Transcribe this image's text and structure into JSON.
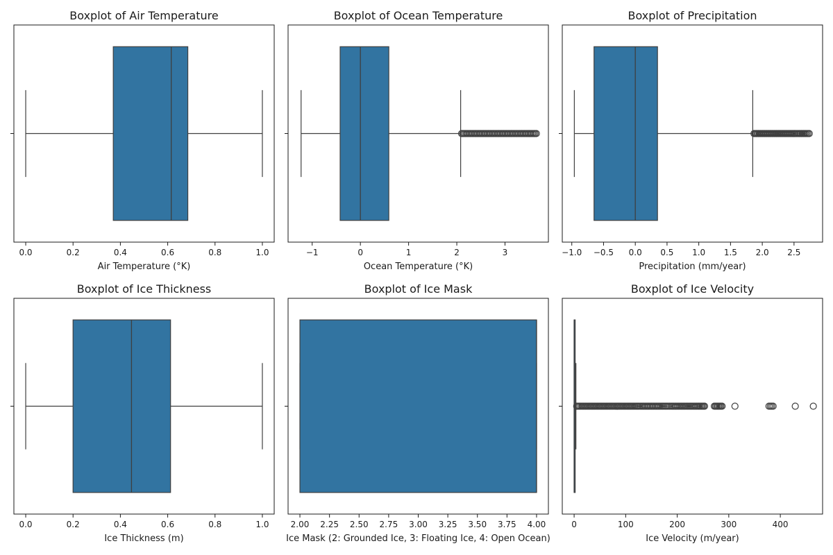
{
  "chart_data": [
    {
      "type": "boxplot",
      "title": "Boxplot of Air Temperature",
      "xlabel": "Air Temperature (°K)",
      "xlim": [
        -0.05,
        1.05
      ],
      "xticks": [
        0.0,
        0.2,
        0.4,
        0.6,
        0.8,
        1.0
      ],
      "xtick_labels": [
        "0.0",
        "0.2",
        "0.4",
        "0.6",
        "0.8",
        "1.0"
      ],
      "whisker_low": 0.0,
      "q1": 0.37,
      "median": 0.615,
      "q3": 0.685,
      "whisker_high": 1.0,
      "outliers": []
    },
    {
      "type": "boxplot",
      "title": "Boxplot of Ocean Temperature",
      "xlabel": "Ocean Temperature (°K)",
      "xlim": [
        -1.5,
        3.9
      ],
      "xticks": [
        -1,
        0,
        1,
        2,
        3
      ],
      "xtick_labels": [
        "−1",
        "0",
        "1",
        "2",
        "3"
      ],
      "whisker_low": -1.23,
      "q1": -0.42,
      "median": 0.0,
      "q3": 0.59,
      "whisker_high": 2.08,
      "outliers": [
        2.1,
        2.2,
        2.3,
        2.4,
        2.5,
        2.6,
        2.7,
        2.8,
        2.9,
        3.0,
        3.1,
        3.2,
        3.3,
        3.4,
        3.5,
        3.6,
        3.65
      ]
    },
    {
      "type": "boxplot",
      "title": "Boxplot of Precipitation",
      "xlabel": "Precipitation (mm/year)",
      "xlim": [
        -1.15,
        2.95
      ],
      "xticks": [
        -1.0,
        -0.5,
        0.0,
        0.5,
        1.0,
        1.5,
        2.0,
        2.5
      ],
      "xtick_labels": [
        "−1.0",
        "−0.5",
        "0.0",
        "0.5",
        "1.0",
        "1.5",
        "2.0",
        "2.5"
      ],
      "whisker_low": -0.96,
      "q1": -0.65,
      "median": 0.0,
      "q3": 0.35,
      "whisker_high": 1.85,
      "outliers": [
        1.87,
        1.92,
        1.97,
        2.02,
        2.07,
        2.12,
        2.17,
        2.22,
        2.27,
        2.32,
        2.37,
        2.42,
        2.47,
        2.52,
        2.58,
        2.63,
        2.68,
        2.74
      ]
    },
    {
      "type": "boxplot",
      "title": "Boxplot of Ice Thickness",
      "xlabel": "Ice Thickness (m)",
      "xlim": [
        -0.05,
        1.05
      ],
      "xticks": [
        0.0,
        0.2,
        0.4,
        0.6,
        0.8,
        1.0
      ],
      "xtick_labels": [
        "0.0",
        "0.2",
        "0.4",
        "0.6",
        "0.8",
        "1.0"
      ],
      "whisker_low": 0.0,
      "q1": 0.2,
      "median": 0.447,
      "q3": 0.612,
      "whisker_high": 1.0,
      "outliers": []
    },
    {
      "type": "boxplot",
      "title": "Boxplot of Ice Mask",
      "xlabel": "Ice Mask (2: Grounded Ice, 3: Floating Ice, 4: Open Ocean)",
      "xlim": [
        1.9,
        4.1
      ],
      "xticks": [
        2.0,
        2.25,
        2.5,
        2.75,
        3.0,
        3.25,
        3.5,
        3.75,
        4.0
      ],
      "xtick_labels": [
        "2.00",
        "2.25",
        "2.50",
        "2.75",
        "3.00",
        "3.25",
        "3.50",
        "3.75",
        "4.00"
      ],
      "whisker_low": 2.0,
      "q1": 2.0,
      "median": 4.0,
      "q3": 4.0,
      "whisker_high": 4.0,
      "outliers": []
    },
    {
      "type": "boxplot",
      "title": "Boxplot of Ice Velocity",
      "xlabel": "Ice Velocity (m/year)",
      "xlim": [
        -23,
        482
      ],
      "xticks": [
        0,
        100,
        200,
        300,
        400
      ],
      "xtick_labels": [
        "0",
        "100",
        "200",
        "300",
        "400"
      ],
      "whisker_low": 0.0,
      "q1": 0.0,
      "median": 0.0,
      "q3": 2.0,
      "whisker_high": 3.5,
      "outliers": [
        5,
        10,
        15,
        20,
        25,
        30,
        35,
        40,
        45,
        50,
        55,
        60,
        65,
        70,
        75,
        80,
        85,
        90,
        95,
        100,
        105,
        110,
        115,
        120,
        125,
        131,
        138,
        145,
        152,
        159,
        166,
        174,
        182,
        188,
        193,
        200,
        205,
        215,
        220,
        228,
        233,
        240,
        253,
        272,
        287,
        312,
        378,
        386,
        429,
        464
      ]
    }
  ]
}
